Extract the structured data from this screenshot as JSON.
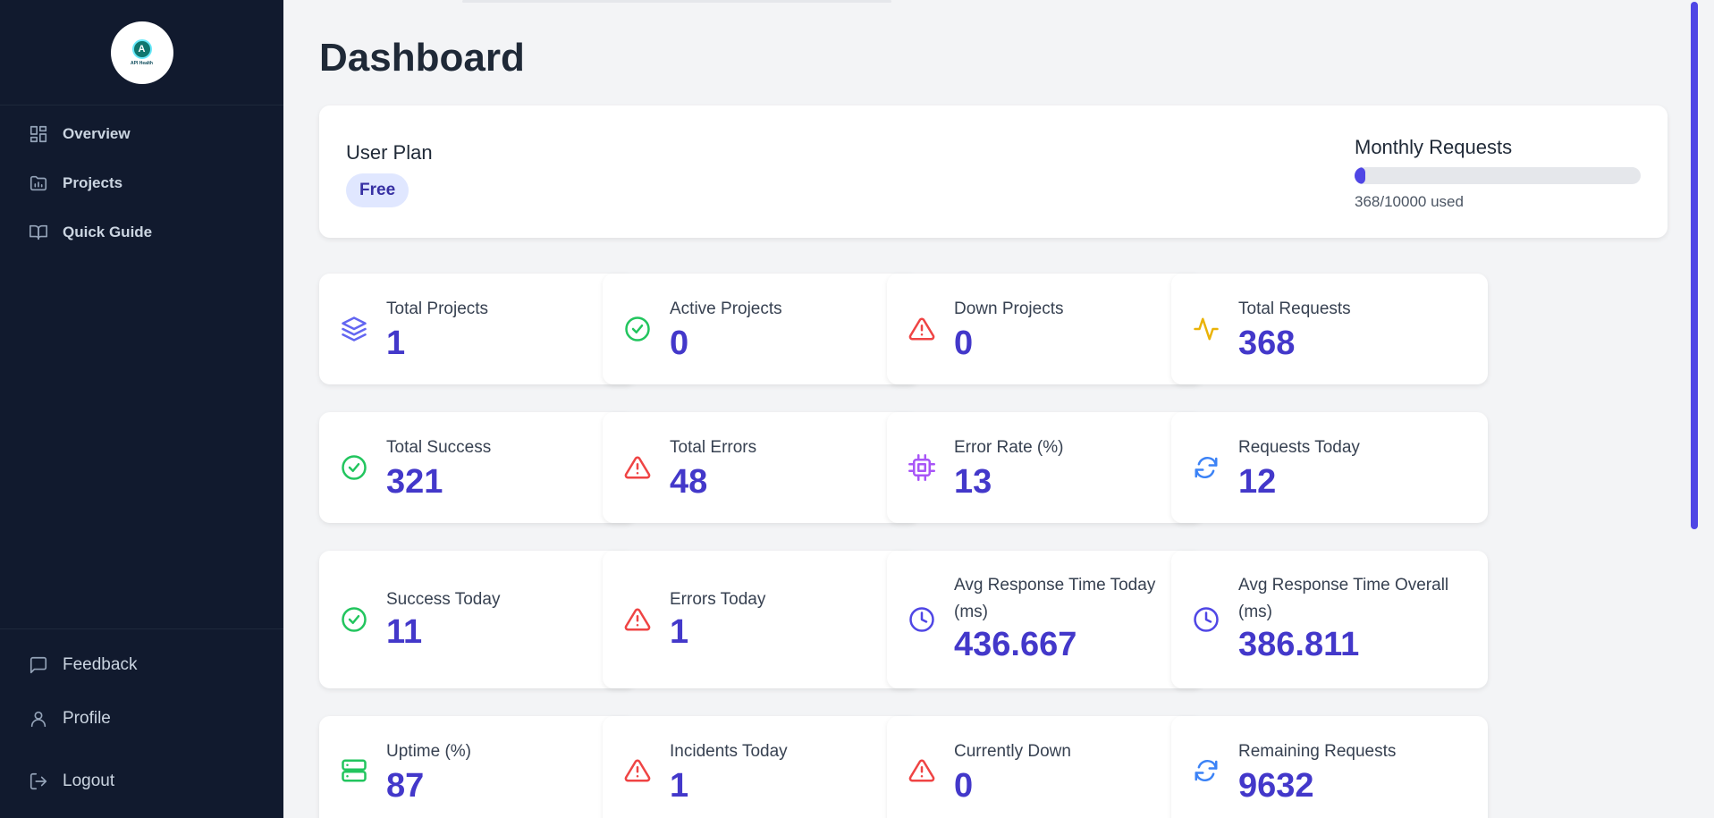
{
  "sidebar": {
    "logo_text": "API Health",
    "nav": [
      {
        "label": "Overview",
        "icon": "grid-icon"
      },
      {
        "label": "Projects",
        "icon": "folder-chart-icon"
      },
      {
        "label": "Quick Guide",
        "icon": "book-icon"
      }
    ],
    "bottom_nav": [
      {
        "label": "Feedback",
        "icon": "message-icon"
      },
      {
        "label": "Profile",
        "icon": "user-icon"
      },
      {
        "label": "Logout",
        "icon": "logout-icon"
      }
    ]
  },
  "header": {
    "title": "Dashboard"
  },
  "plan": {
    "label": "User Plan",
    "badge": "Free",
    "monthly_label": "Monthly Requests",
    "monthly_used_text": "368/10000 used",
    "monthly_fraction": 0.0368
  },
  "colors": {
    "accent": "#4f46e5",
    "value": "#4338ca",
    "success": "#22c55e",
    "danger": "#ef4444",
    "warning": "#eab308",
    "purple": "#a855f7",
    "blue": "#3b82f6"
  },
  "stats": [
    {
      "label": "Total Projects",
      "value": "1",
      "icon": "layers-icon"
    },
    {
      "label": "Active Projects",
      "value": "0",
      "icon": "check-circle-icon"
    },
    {
      "label": "Down Projects",
      "value": "0",
      "icon": "alert-triangle-icon"
    },
    {
      "label": "Total Requests",
      "value": "368",
      "icon": "activity-icon"
    },
    {
      "label": "Total Success",
      "value": "321",
      "icon": "check-circle-icon"
    },
    {
      "label": "Total Errors",
      "value": "48",
      "icon": "alert-triangle-icon"
    },
    {
      "label": "Error Rate (%)",
      "value": "13",
      "icon": "cpu-icon"
    },
    {
      "label": "Requests Today",
      "value": "12",
      "icon": "refresh-icon"
    },
    {
      "label": "Success Today",
      "value": "11",
      "icon": "check-circle-icon"
    },
    {
      "label": "Errors Today",
      "value": "1",
      "icon": "alert-triangle-icon"
    },
    {
      "label": "Avg Response Time Today (ms)",
      "value": "436.667",
      "icon": "clock-icon"
    },
    {
      "label": "Avg Response Time Overall (ms)",
      "value": "386.811",
      "icon": "clock-icon"
    },
    {
      "label": "Uptime (%)",
      "value": "87",
      "icon": "server-icon"
    },
    {
      "label": "Incidents Today",
      "value": "1",
      "icon": "alert-triangle-icon"
    },
    {
      "label": "Currently Down",
      "value": "0",
      "icon": "alert-triangle-icon"
    },
    {
      "label": "Remaining Requests",
      "value": "9632",
      "icon": "refresh-icon"
    }
  ]
}
